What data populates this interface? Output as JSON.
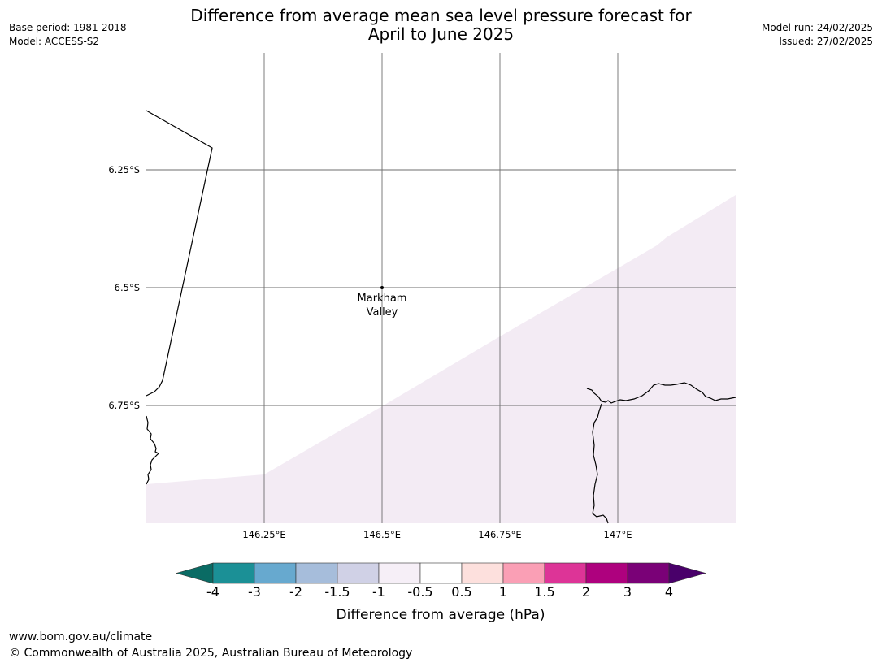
{
  "header": {
    "title_line1": "Difference from average mean sea level pressure forecast for",
    "title_line2": "April to June 2025",
    "base_period": "Base period: 1981-2018",
    "model": "Model: ACCESS-S2",
    "model_run": "Model run: 24/02/2025",
    "issued": "Issued: 27/02/2025"
  },
  "map": {
    "longitude_labels": [
      "146.25°E",
      "146.5°E",
      "146.75°E",
      "147°E"
    ],
    "latitude_labels": [
      "6.25°S",
      "6.5°S",
      "6.75°S"
    ],
    "place": {
      "name_line1": "Markham",
      "name_line2": "Valley",
      "lon": 146.5,
      "lat": -6.5
    },
    "shaded_region_category": "-1 to -0.5",
    "shaded_region_color": "#f3ebf4",
    "gridline_color": "#6e6e6e",
    "coastline_color": "#000000"
  },
  "colorbar": {
    "title": "Difference from average (hPa)",
    "tick_labels": [
      "-4",
      "-3",
      "-2",
      "-1.5",
      "-1",
      "-0.5",
      "0.5",
      "1",
      "1.5",
      "2",
      "3",
      "4"
    ],
    "colors": [
      "#0a6b64",
      "#1b9096",
      "#67a9cf",
      "#a6bddb",
      "#d0d1e6",
      "#f6eff7",
      "#ffffff",
      "#fde0dd",
      "#fa9fb5",
      "#dd3497",
      "#ae017e",
      "#7a0177",
      "#49006a"
    ]
  },
  "footer": {
    "url": "www.bom.gov.au/climate",
    "copyright": "© Commonwealth of Australia 2025, Australian Bureau of Meteorology"
  }
}
